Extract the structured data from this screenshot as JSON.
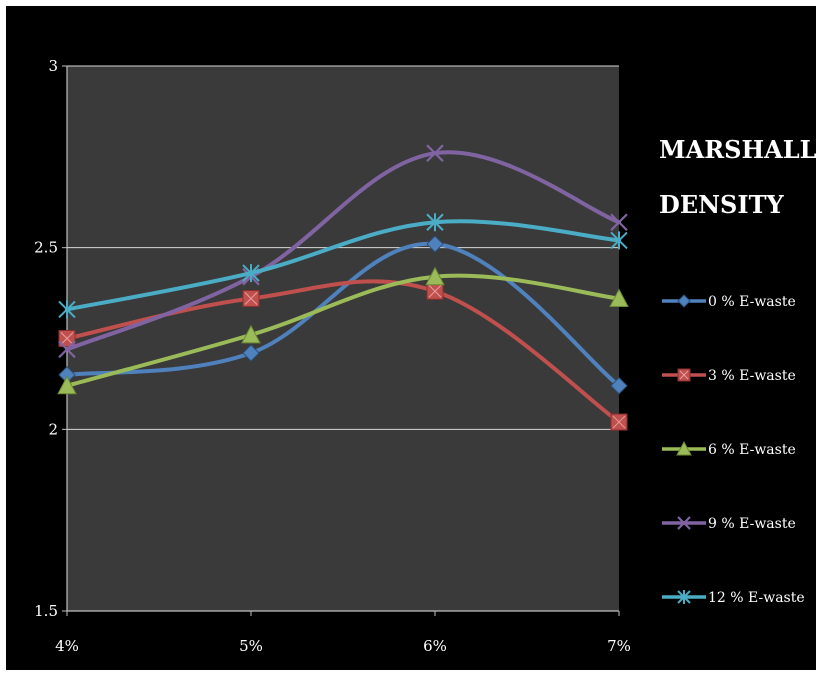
{
  "chart_data": {
    "type": "line",
    "title_lines": [
      "MARSHALL",
      "DENSITY"
    ],
    "categories": [
      "4%",
      "5%",
      "6%",
      "7%"
    ],
    "ylim": [
      1.5,
      3
    ],
    "yticks": [
      1.5,
      2,
      2.5,
      3
    ],
    "grid": true,
    "smooth": true,
    "legend_position": "right",
    "series": [
      {
        "name": "0 % E-waste",
        "values": [
          2.15,
          2.21,
          2.51,
          2.12
        ],
        "color": "#4f81bd",
        "marker": "diamond"
      },
      {
        "name": "3 % E-waste",
        "values": [
          2.25,
          2.36,
          2.38,
          2.02
        ],
        "color": "#c0504d",
        "marker": "square"
      },
      {
        "name": "6 % E-waste",
        "values": [
          2.12,
          2.26,
          2.42,
          2.36
        ],
        "color": "#9bbb59",
        "marker": "triangle"
      },
      {
        "name": "9 % E-waste",
        "values": [
          2.22,
          2.42,
          2.76,
          2.57
        ],
        "color": "#8064a2",
        "marker": "x"
      },
      {
        "name": "12 % E-waste",
        "values": [
          2.33,
          2.43,
          2.57,
          2.52
        ],
        "color": "#4bacc6",
        "marker": "star"
      }
    ],
    "plot_background": "#3a3a3a",
    "gridline_color": "#d9d9d9"
  }
}
